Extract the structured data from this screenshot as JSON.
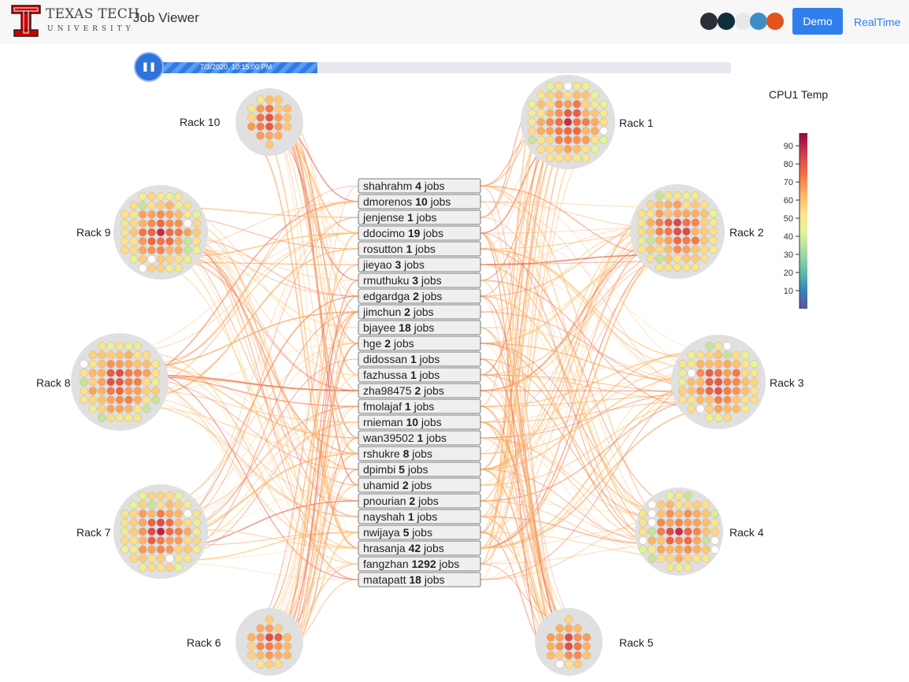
{
  "header": {
    "logo_text": "TEXAS TECH",
    "logo_subtext": "UNIVERSITY",
    "title": "Job Viewer",
    "theme_colors": [
      "#2b2f36",
      "#0f2d3a",
      "#e8e8e8",
      "#3b8fc6",
      "#e3541c"
    ],
    "theme_icons": [
      "theme-dark-icon",
      "theme-navy-icon",
      "theme-light-icon",
      "theme-blue-icon",
      "theme-orange-icon"
    ],
    "demo_label": "Demo",
    "realtime_label": "RealTime"
  },
  "timeline": {
    "timestamp": "7/3/2020, 10:15:00 PM",
    "progress": 0.29,
    "play_icon": "pause-icon",
    "play_symbol": "❚❚"
  },
  "legend": {
    "title": "CPU1 Temp",
    "ticks": [
      10,
      20,
      30,
      40,
      50,
      60,
      70,
      80,
      90
    ],
    "range": [
      0,
      97
    ],
    "colors": [
      "#5e4fa2",
      "#3288bd",
      "#66c2a5",
      "#abdda4",
      "#e6f598",
      "#fee08b",
      "#fdae61",
      "#f46d43",
      "#d53e4f",
      "#9e0142"
    ]
  },
  "racks": [
    {
      "label": "Rack 10",
      "side": "left"
    },
    {
      "label": "Rack 9",
      "side": "left"
    },
    {
      "label": "Rack 8",
      "side": "left"
    },
    {
      "label": "Rack 7",
      "side": "left"
    },
    {
      "label": "Rack 6",
      "side": "left"
    },
    {
      "label": "Rack 1",
      "side": "right"
    },
    {
      "label": "Rack 2",
      "side": "right"
    },
    {
      "label": "Rack 3",
      "side": "right"
    },
    {
      "label": "Rack 4",
      "side": "right"
    },
    {
      "label": "Rack 5",
      "side": "right"
    }
  ],
  "users": [
    {
      "name": "shahrahm",
      "jobs": "4",
      "suffix": " jobs"
    },
    {
      "name": "dmorenos",
      "jobs": "10",
      "suffix": " jobs"
    },
    {
      "name": "jenjense",
      "jobs": "1",
      "suffix": " jobs"
    },
    {
      "name": "ddocimo",
      "jobs": "19",
      "suffix": " jobs"
    },
    {
      "name": "rosutton",
      "jobs": "1",
      "suffix": " jobs"
    },
    {
      "name": "jieyao",
      "jobs": "3",
      "suffix": " jobs"
    },
    {
      "name": "rmuthuku",
      "jobs": "3",
      "suffix": " jobs"
    },
    {
      "name": "edgardga",
      "jobs": "2",
      "suffix": " jobs"
    },
    {
      "name": "jimchun",
      "jobs": "2",
      "suffix": " jobs"
    },
    {
      "name": "bjayee",
      "jobs": "18",
      "suffix": " jobs"
    },
    {
      "name": "hge",
      "jobs": "2",
      "suffix": " jobs"
    },
    {
      "name": "didossan",
      "jobs": "1",
      "suffix": " jobs"
    },
    {
      "name": "fazhussa",
      "jobs": "1",
      "suffix": " jobs"
    },
    {
      "name": "zha98475",
      "jobs": "2",
      "suffix": " jobs"
    },
    {
      "name": "fmolajaf",
      "jobs": "1",
      "suffix": " jobs"
    },
    {
      "name": "rnieman",
      "jobs": "10",
      "suffix": " jobs"
    },
    {
      "name": "wan39502",
      "jobs": "1",
      "suffix": " jobs"
    },
    {
      "name": "rshukre",
      "jobs": "8",
      "suffix": " jobs"
    },
    {
      "name": "dpimbi",
      "jobs": "5",
      "suffix": " jobs"
    },
    {
      "name": "uhamid",
      "jobs": "2",
      "suffix": " jobs"
    },
    {
      "name": "pnourian",
      "jobs": "2",
      "suffix": " jobs"
    },
    {
      "name": "nayshah",
      "jobs": "1",
      "suffix": " jobs"
    },
    {
      "name": "nwijaya",
      "jobs": "5",
      "suffix": " jobs"
    },
    {
      "name": "hrasanja",
      "jobs": "42",
      "suffix": " jobs"
    },
    {
      "name": "fangzhan",
      "jobs": "1292",
      "suffix": " jobs"
    },
    {
      "name": "matapatt",
      "jobs": "18",
      "suffix": " jobs"
    }
  ]
}
